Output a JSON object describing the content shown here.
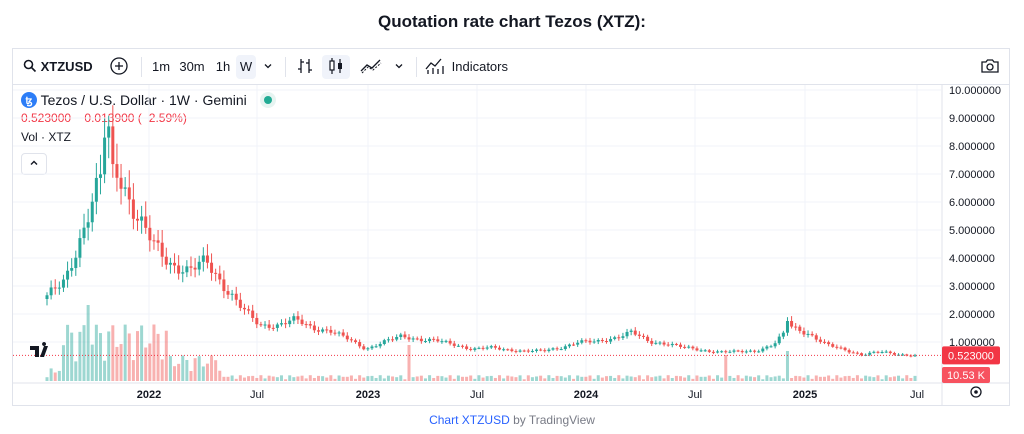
{
  "page_title": "Quotation rate chart Tezos (XTZ):",
  "toolbar": {
    "symbol": "XTZUSD",
    "intervals": [
      "1m",
      "30m",
      "1h",
      "W"
    ],
    "active_interval": "W",
    "indicators_label": "Indicators"
  },
  "legend": {
    "title": "Tezos / U.S. Dollar · 1W · Gemini",
    "last": "0.523000",
    "change": "−0.013900 (−2.59%)",
    "volume_label": "Vol · XTZ"
  },
  "price_axis": {
    "ticks": [
      "10.000000",
      "9.000000",
      "8.000000",
      "7.000000",
      "6.000000",
      "5.000000",
      "4.000000",
      "3.000000",
      "2.000000",
      "1.000000"
    ],
    "last_price_label": "0.523000",
    "volume_label": "10.53 K"
  },
  "time_axis": {
    "labels": [
      "2022",
      "Jul",
      "2023",
      "Jul",
      "2024",
      "Jul",
      "2025",
      "Jul"
    ]
  },
  "footer": {
    "link": "Chart XTZUSD",
    "rest": " by TradingView"
  },
  "colors": {
    "up": "#26a69a",
    "down": "#ef5350",
    "last_price": "#f23645"
  },
  "chart_data": {
    "type": "candlestick",
    "title": "Tezos / U.S. Dollar · 1W · Gemini",
    "xlabel": "",
    "ylabel": "",
    "ylim": [
      0,
      10
    ],
    "x_range": [
      "2021-06",
      "2025-07"
    ],
    "last_price": 0.523,
    "close_series": [
      [
        "2021-06",
        2.6
      ],
      [
        "2021-07",
        3.2
      ],
      [
        "2021-08",
        4.9
      ],
      [
        "2021-09",
        6.8
      ],
      [
        "2021-10",
        7.2
      ],
      [
        "2021-11",
        5.5
      ],
      [
        "2021-12",
        4.5
      ],
      [
        "2022-01",
        3.8
      ],
      [
        "2022-02",
        3.5
      ],
      [
        "2022-03",
        3.9
      ],
      [
        "2022-04",
        3.0
      ],
      [
        "2022-05",
        2.2
      ],
      [
        "2022-06",
        1.6
      ],
      [
        "2022-07",
        1.6
      ],
      [
        "2022-08",
        1.8
      ],
      [
        "2022-09",
        1.5
      ],
      [
        "2022-10",
        1.4
      ],
      [
        "2022-11",
        1.1
      ],
      [
        "2022-12",
        0.75
      ],
      [
        "2023-01",
        1.0
      ],
      [
        "2023-02",
        1.2
      ],
      [
        "2023-03",
        1.1
      ],
      [
        "2023-04",
        1.05
      ],
      [
        "2023-05",
        0.9
      ],
      [
        "2023-06",
        0.75
      ],
      [
        "2023-07",
        0.8
      ],
      [
        "2023-08",
        0.72
      ],
      [
        "2023-09",
        0.68
      ],
      [
        "2023-10",
        0.68
      ],
      [
        "2023-11",
        0.8
      ],
      [
        "2023-12",
        1.0
      ],
      [
        "2024-01",
        1.0
      ],
      [
        "2024-02",
        1.15
      ],
      [
        "2024-03",
        1.35
      ],
      [
        "2024-04",
        1.0
      ],
      [
        "2024-05",
        0.95
      ],
      [
        "2024-06",
        0.8
      ],
      [
        "2024-07",
        0.7
      ],
      [
        "2024-08",
        0.65
      ],
      [
        "2024-09",
        0.65
      ],
      [
        "2024-10",
        0.68
      ],
      [
        "2024-11",
        0.9
      ],
      [
        "2024-12",
        1.55
      ],
      [
        "2025-01",
        1.3
      ],
      [
        "2025-02",
        0.9
      ],
      [
        "2025-03",
        0.72
      ],
      [
        "2025-04",
        0.55
      ],
      [
        "2025-05",
        0.65
      ],
      [
        "2025-06",
        0.56
      ],
      [
        "2025-07",
        0.523
      ]
    ],
    "volume_axis_label": "10.53 K"
  }
}
